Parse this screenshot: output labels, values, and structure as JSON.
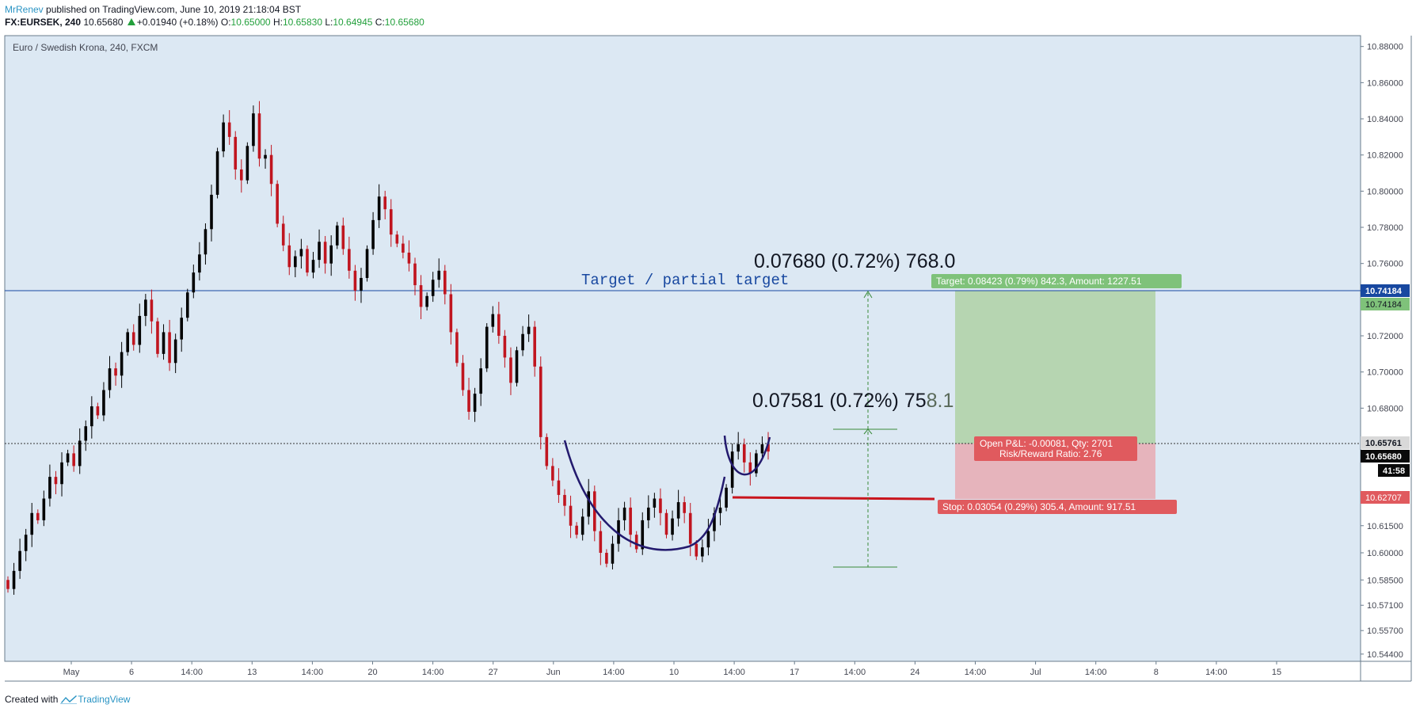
{
  "header": {
    "publisher": "MrRenev",
    "published_text": "published on TradingView.com, June 10, 2019 21:18:04 BST",
    "symbol": "FX:EURSEK, 240",
    "last": "10.65680",
    "change": "+0.01940 (+0.18%)",
    "o_label": "O:",
    "o": "10.65000",
    "h_label": "H:",
    "h": "10.65830",
    "l_label": "L:",
    "l": "10.64945",
    "c_label": "C:",
    "c": "10.65680"
  },
  "footer": {
    "created_with": "Created with",
    "brand": "TradingView"
  },
  "colors": {
    "background": "#dce8f3",
    "bull": "#000000",
    "bear": "#c0151f",
    "curve": "#231a6e",
    "target_zone": "#b3d4ad",
    "stop_zone": "#e6b1b8",
    "target_label": "#7fc27a",
    "stop_label": "#e05a5e",
    "blue_line": "#1848a0"
  },
  "chart_data": {
    "type": "candlestick",
    "title": "Euro / Swedish Krona, 240, FXCM",
    "y_axis_ticks": [
      "10.88000",
      "10.86000",
      "10.84000",
      "10.82000",
      "10.80000",
      "10.78000",
      "10.76000",
      "10.72000",
      "10.70000",
      "10.68000",
      "10.61500",
      "10.60000",
      "10.58500",
      "10.57100",
      "10.55700",
      "10.54400"
    ],
    "x_axis_ticks": [
      "May",
      "6",
      "14:00",
      "13",
      "14:00",
      "20",
      "14:00",
      "27",
      "Jun",
      "14:00",
      "10",
      "14:00",
      "17",
      "14:00",
      "24",
      "14:00",
      "Jul",
      "14:00",
      "8",
      "14:00",
      "15"
    ],
    "price_labels": {
      "target_line": "10.74184",
      "target_level": "10.74184",
      "open_level": "10.65761",
      "last_price": "10.65680",
      "countdown": "41:58",
      "stop_level": "10.62707"
    },
    "ylim": [
      10.54,
      10.886
    ],
    "candles_close": [
      10.58,
      10.59,
      10.601,
      10.61,
      10.622,
      10.618,
      10.63,
      10.642,
      10.638,
      10.65,
      10.655,
      10.648,
      10.662,
      10.67,
      10.681,
      10.676,
      10.69,
      10.702,
      10.698,
      10.711,
      10.722,
      10.715,
      10.731,
      10.74,
      10.728,
      10.71,
      10.722,
      10.705,
      10.718,
      10.73,
      10.744,
      10.755,
      10.765,
      10.779,
      10.798,
      10.822,
      10.838,
      10.83,
      10.812,
      10.806,
      10.825,
      10.843,
      10.818,
      10.82,
      10.804,
      10.782,
      10.77,
      10.758,
      10.764,
      10.768,
      10.755,
      10.762,
      10.772,
      10.76,
      10.77,
      10.781,
      10.768,
      10.756,
      10.745,
      10.752,
      10.768,
      10.784,
      10.797,
      10.79,
      10.776,
      10.771,
      10.766,
      10.76,
      10.748,
      10.736,
      10.742,
      10.751,
      10.756,
      10.743,
      10.722,
      10.705,
      10.69,
      10.678,
      10.688,
      10.702,
      10.725,
      10.732,
      10.72,
      10.708,
      10.694,
      10.712,
      10.721,
      10.725,
      10.703,
      10.664,
      10.648,
      10.64,
      10.632,
      10.626,
      10.615,
      10.61,
      10.62,
      10.634,
      10.612,
      10.6,
      10.594,
      10.605,
      10.618,
      10.625,
      10.61,
      10.602,
      10.618,
      10.625,
      10.63,
      10.622,
      10.61,
      10.619,
      10.628,
      10.622,
      10.605,
      10.598,
      10.603,
      10.612,
      10.622,
      10.625,
      10.636,
      10.656,
      10.66,
      10.65,
      10.644,
      10.655,
      10.66,
      10.656
    ],
    "series": [
      {
        "name": "Long position",
        "entry": 10.65761,
        "target": 10.74184,
        "stop": 10.62707
      }
    ],
    "annotations": {
      "target_text": "Target / partial target",
      "measure_top": "0.07680 (0.72%) 768.0",
      "measure_mid_main": "0.07581 (0.72%) 75",
      "measure_mid_tail": "8.1",
      "target_label": "Target: 0.08423 (0.79%) 842.3, Amount: 1227.51",
      "pnl_label": "Open P&L: -0.00081, Qty: 2701",
      "rr_label": "Risk/Reward Ratio: 2.76",
      "stop_label": "Stop: 0.03054 (0.29%) 305.4, Amount: 917.51"
    }
  }
}
